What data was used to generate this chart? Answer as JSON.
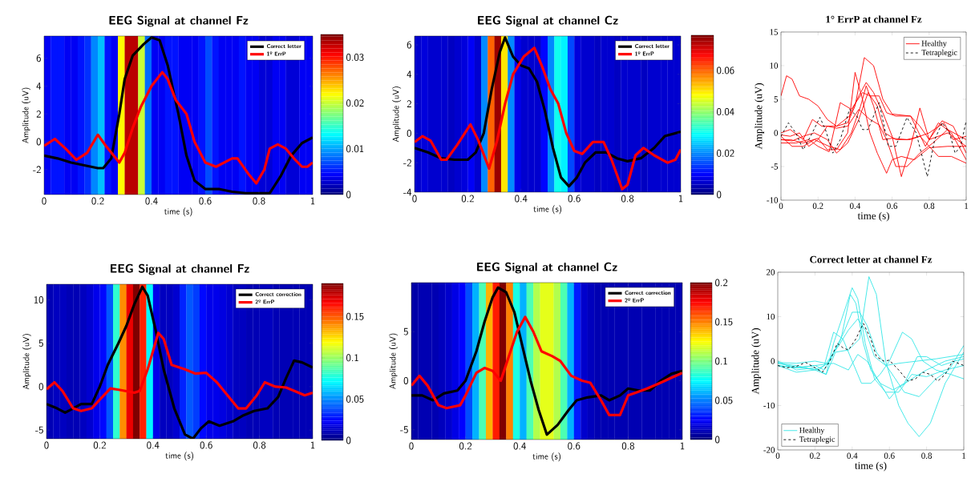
{
  "chart_data": [
    {
      "type": "heatmap",
      "title": "EEG Signal at channel Fz",
      "xlabel": "time (s)",
      "ylabel": "Amplitude (uV)",
      "x": [
        0.0125,
        0.0375,
        0.0625,
        0.0875,
        0.1125,
        0.1375,
        0.1625,
        0.1875,
        0.2125,
        0.2375,
        0.2625,
        0.2875,
        0.3125,
        0.3375,
        0.3625,
        0.3875,
        0.4125,
        0.4375,
        0.4625,
        0.4875,
        0.5125,
        0.5375,
        0.5625,
        0.5875,
        0.6125,
        0.6375,
        0.6625,
        0.6875,
        0.7125,
        0.7375,
        0.7625,
        0.7875,
        0.8125,
        0.8375,
        0.8625,
        0.8875,
        0.9125,
        0.9375,
        0.9625,
        0.9875
      ],
      "cells": [
        [
          0.004,
          0.005,
          0.005,
          0.004,
          0.004,
          0.005,
          0.006,
          0.009,
          0.011,
          0.005,
          0.004,
          0.022,
          0.033,
          0.033,
          0.02,
          0.008,
          0.004,
          0.004,
          0.005,
          0.005,
          0.004,
          0.004,
          0.004,
          0.005,
          0.007,
          0.005,
          0.004,
          0.004,
          0.004,
          0.005,
          0.004,
          0.004,
          0.003,
          0.003,
          0.004,
          0.004,
          0.003,
          0.003,
          0.004,
          0.004
        ]
      ],
      "clim": [
        0,
        0.035
      ],
      "cticks": [
        0,
        0.01,
        0.02,
        0.03
      ],
      "xlim": [
        0,
        1
      ],
      "xticks": [
        0,
        0.2,
        0.4,
        0.6,
        0.8,
        1
      ],
      "ylim": [
        -3.8,
        7.6
      ],
      "yticks": [
        -2,
        0,
        2,
        4,
        6
      ],
      "legend": "top right",
      "series": [
        {
          "type": "line",
          "name": "Correct letter",
          "color": "#000000",
          "x": [
            0,
            0.05,
            0.1,
            0.15,
            0.2,
            0.22,
            0.25,
            0.28,
            0.3,
            0.33,
            0.37,
            0.4,
            0.43,
            0.46,
            0.5,
            0.53,
            0.56,
            0.6,
            0.65,
            0.7,
            0.75,
            0.8,
            0.84,
            0.88,
            0.92,
            0.96,
            1
          ],
          "values": [
            -1,
            -1.2,
            -1.5,
            -1.7,
            -1.9,
            -1.9,
            -1.2,
            2,
            4.5,
            6.2,
            7,
            7.5,
            7.3,
            5.5,
            2,
            -1,
            -2.8,
            -3.4,
            -3.4,
            -3.6,
            -3.7,
            -3.7,
            -3.7,
            -2.5,
            -1,
            -0.1,
            0.3
          ]
        },
        {
          "type": "line",
          "name": "1º ErrP",
          "color": "#ff0000",
          "x": [
            0,
            0.04,
            0.08,
            0.12,
            0.16,
            0.2,
            0.23,
            0.28,
            0.3,
            0.33,
            0.36,
            0.4,
            0.44,
            0.46,
            0.49,
            0.53,
            0.56,
            0.6,
            0.64,
            0.7,
            0.72,
            0.76,
            0.79,
            0.82,
            0.84,
            0.87,
            0.9,
            0.93,
            0.96,
            0.98,
            1
          ],
          "values": [
            -0.3,
            0.2,
            -0.5,
            -1.3,
            -0.8,
            0.5,
            -0.3,
            -1.5,
            -0.8,
            1,
            2.5,
            4,
            5,
            4.5,
            3,
            2,
            0,
            -1.5,
            -1.8,
            -1.2,
            -1.2,
            -2.3,
            -3,
            -2,
            -0.5,
            -0.2,
            -0.5,
            -1.2,
            -1.8,
            -1.8,
            -1.5
          ]
        }
      ]
    },
    {
      "type": "heatmap",
      "title": "EEG Signal at channel Cz",
      "xlabel": "time (s)",
      "ylabel": "Amplitude (uV)",
      "x": [
        0.0125,
        0.0375,
        0.0625,
        0.0875,
        0.1125,
        0.1375,
        0.1625,
        0.1875,
        0.2125,
        0.2375,
        0.2625,
        0.2875,
        0.3125,
        0.3375,
        0.3625,
        0.3875,
        0.4125,
        0.4375,
        0.4625,
        0.4875,
        0.5125,
        0.5375,
        0.5625,
        0.5875,
        0.6125,
        0.6375,
        0.6625,
        0.6875,
        0.7125,
        0.7375,
        0.7625,
        0.7875,
        0.8125,
        0.8375,
        0.8625,
        0.8875,
        0.9125,
        0.9375,
        0.9625,
        0.9875
      ],
      "cells": [
        [
          0.006,
          0.007,
          0.006,
          0.006,
          0.006,
          0.005,
          0.006,
          0.007,
          0.009,
          0.006,
          0.02,
          0.06,
          0.075,
          0.05,
          0.02,
          0.008,
          0.006,
          0.006,
          0.006,
          0.01,
          0.02,
          0.03,
          0.028,
          0.015,
          0.007,
          0.006,
          0.006,
          0.005,
          0.006,
          0.006,
          0.005,
          0.006,
          0.006,
          0.006,
          0.005,
          0.006,
          0.006,
          0.006,
          0.006,
          0.006
        ]
      ],
      "clim": [
        0,
        0.077
      ],
      "cticks": [
        0,
        0.02,
        0.04,
        0.06
      ],
      "xlim": [
        0,
        1
      ],
      "xticks": [
        0,
        0.2,
        0.4,
        0.6,
        0.8,
        1
      ],
      "ylim": [
        -4,
        6.6
      ],
      "yticks": [
        -4,
        -2,
        0,
        2,
        4,
        6
      ],
      "legend": "top right",
      "series": [
        {
          "type": "line",
          "name": "Correct letter",
          "color": "#000000",
          "x": [
            0,
            0.05,
            0.1,
            0.15,
            0.2,
            0.23,
            0.26,
            0.29,
            0.32,
            0.34,
            0.37,
            0.4,
            0.43,
            0.46,
            0.49,
            0.52,
            0.55,
            0.58,
            0.61,
            0.64,
            0.68,
            0.72,
            0.76,
            0.8,
            0.85,
            0.9,
            0.94,
            1
          ],
          "values": [
            -1,
            -1.3,
            -1.7,
            -1.8,
            -1.8,
            -1.3,
            0,
            3,
            5.5,
            6.5,
            5.2,
            4.6,
            4.4,
            3.5,
            1.5,
            -1,
            -3,
            -3.6,
            -3,
            -2,
            -1.3,
            -1.3,
            -1.7,
            -1.9,
            -1.7,
            -1,
            -0.2,
            0.1
          ]
        },
        {
          "type": "line",
          "name": "1º ErrP",
          "color": "#ff0000",
          "x": [
            0,
            0.03,
            0.06,
            0.1,
            0.12,
            0.16,
            0.21,
            0.24,
            0.28,
            0.31,
            0.34,
            0.37,
            0.41,
            0.45,
            0.48,
            0.51,
            0.54,
            0.57,
            0.6,
            0.63,
            0.67,
            0.71,
            0.74,
            0.78,
            0.8,
            0.83,
            0.86,
            0.9,
            0.95,
            0.98,
            1
          ],
          "values": [
            -0.6,
            -0.2,
            -0.5,
            -1.8,
            -1.8,
            -0.8,
            0.6,
            -0.5,
            -2.4,
            -0.5,
            2,
            4,
            5.2,
            5.8,
            4.5,
            3,
            2,
            0,
            -1.2,
            -1.4,
            -0.6,
            -0.6,
            -1.8,
            -3.8,
            -3.5,
            -1.5,
            -1,
            -1.5,
            -2,
            -1.8,
            -1.1
          ]
        }
      ]
    },
    {
      "type": "line",
      "title": "1° ErrP at channel Fz",
      "xlabel": "time (s)",
      "ylabel": "Amplitude (uV)",
      "xlim": [
        0,
        1
      ],
      "xticks": [
        0,
        0.2,
        0.4,
        0.6,
        0.8,
        1
      ],
      "ylim": [
        -10,
        15
      ],
      "yticks": [
        -10,
        -5,
        0,
        5,
        10,
        15
      ],
      "legend": "top right",
      "series": [
        {
          "name": "Healthy",
          "color": "#ff0000",
          "x": [
            0,
            0.03,
            0.06,
            0.1,
            0.15,
            0.2,
            0.25,
            0.3,
            0.36,
            0.4,
            0.45,
            0.5,
            0.55,
            0.6,
            0.7,
            0.75,
            0.8,
            0.9,
            1
          ],
          "values": [
            5.5,
            8.5,
            8,
            5.5,
            5,
            4,
            2,
            1,
            1.5,
            4,
            11.2,
            10,
            5,
            2.8,
            2.5,
            1,
            -1,
            0,
            -2
          ]
        },
        {
          "color": "#ff0000",
          "x": [
            0,
            0.05,
            0.12,
            0.2,
            0.25,
            0.3,
            0.36,
            0.4,
            0.44,
            0.48,
            0.52,
            0.57,
            0.6,
            0.65,
            0.72,
            0.8,
            0.9,
            1
          ],
          "values": [
            -1,
            -1,
            -1.5,
            -0.8,
            -2.5,
            -2.5,
            0,
            9,
            5,
            0,
            -3,
            -6,
            -4,
            -3.5,
            -4,
            -2.2,
            -2,
            -2
          ]
        },
        {
          "color": "#ff0000",
          "x": [
            0,
            0.05,
            0.12,
            0.17,
            0.22,
            0.3,
            0.37,
            0.42,
            0.46,
            0.5,
            0.55,
            0.6,
            0.65,
            0.7,
            0.75,
            0.8,
            0.87,
            0.93,
            1
          ],
          "values": [
            0,
            0.5,
            -1,
            2,
            1,
            1,
            2.5,
            5.5,
            7.5,
            6,
            3,
            -0.5,
            -6.5,
            -2,
            3.7,
            -1,
            1.8,
            1,
            -3
          ]
        },
        {
          "color": "#ff0000",
          "x": [
            0,
            0.08,
            0.15,
            0.2,
            0.26,
            0.32,
            0.38,
            0.44,
            0.48,
            0.53,
            0.57,
            0.62,
            0.7,
            0.78,
            0.85,
            0.92,
            1
          ],
          "values": [
            -1.5,
            -1.5,
            -1,
            -2,
            -2.8,
            4.5,
            3.5,
            6,
            5.5,
            5.5,
            3,
            2.5,
            2.5,
            -2,
            1.5,
            0,
            -4
          ]
        },
        {
          "color": "#ff0000",
          "x": [
            0,
            0.06,
            0.12,
            0.18,
            0.26,
            0.32,
            0.38,
            0.43,
            0.46,
            0.5,
            0.55,
            0.6,
            0.68,
            0.75,
            0.85,
            0.92,
            1
          ],
          "values": [
            -0.5,
            -2,
            -2,
            -1,
            -2,
            -2.5,
            0,
            4,
            7,
            4,
            -1,
            -0.8,
            -1,
            -0.5,
            -3.5,
            -3.5,
            -4.5
          ]
        },
        {
          "color": "#ff0000",
          "x": [
            0,
            0.06,
            0.12,
            0.18,
            0.25,
            0.3,
            0.36,
            0.42,
            0.47,
            0.52,
            0.56,
            0.62,
            0.7,
            0.8,
            0.88,
            0.93,
            1
          ],
          "values": [
            -1,
            -1.2,
            -0.5,
            0,
            -1,
            -3,
            -1.5,
            2,
            6,
            4,
            0,
            -1,
            -1,
            0,
            1.5,
            -1,
            -0.5
          ]
        },
        {
          "color": "#ff0000",
          "x": [
            0,
            0.05,
            0.1,
            0.15,
            0.2,
            0.25,
            0.3,
            0.36,
            0.42,
            0.48,
            0.53,
            0.57,
            0.62,
            0.68,
            0.75,
            0.82,
            0.9,
            1
          ],
          "values": [
            -0.3,
            -0.5,
            0,
            -2,
            -1,
            1,
            0.7,
            1,
            3.5,
            2,
            1.2,
            -1,
            -5,
            -5,
            -3,
            -1.5,
            0.5,
            -1
          ]
        },
        {
          "name": "Tetraplegic",
          "color": "#000000",
          "line_style": "dashed",
          "x": [
            0,
            0.04,
            0.08,
            0.12,
            0.16,
            0.21,
            0.24,
            0.28,
            0.32,
            0.37,
            0.41,
            0.44,
            0.47,
            0.53,
            0.58,
            0.62,
            0.68,
            0.73,
            0.79,
            0.83,
            0.87,
            0.91,
            0.94,
            0.97,
            1
          ],
          "values": [
            -0.5,
            1.5,
            0,
            -2.5,
            -0.5,
            2.3,
            0.5,
            -3,
            -1,
            3.5,
            2.5,
            0.5,
            0.5,
            4.5,
            -2,
            -2,
            2.3,
            0,
            -6.5,
            -1,
            1.5,
            0,
            -3,
            -2,
            1.8
          ]
        }
      ]
    },
    {
      "type": "heatmap",
      "title": "EEG Signal at channel Fz",
      "xlabel": "time (s)",
      "ylabel": "Amplitude (uV)",
      "x": [
        0.0125,
        0.0375,
        0.0625,
        0.0875,
        0.1125,
        0.1375,
        0.1625,
        0.1875,
        0.2125,
        0.2375,
        0.2625,
        0.2875,
        0.3125,
        0.3375,
        0.3625,
        0.3875,
        0.4125,
        0.4375,
        0.4625,
        0.4875,
        0.5125,
        0.5375,
        0.5625,
        0.5875,
        0.6125,
        0.6375,
        0.6625,
        0.6875,
        0.7125,
        0.7375,
        0.7625,
        0.7875,
        0.8125,
        0.8375,
        0.8625,
        0.8875,
        0.9125,
        0.9375,
        0.9625,
        0.9875
      ],
      "cells": [
        [
          0.01,
          0.012,
          0.012,
          0.01,
          0.01,
          0.012,
          0.015,
          0.02,
          0.025,
          0.04,
          0.08,
          0.14,
          0.17,
          0.19,
          0.16,
          0.07,
          0.02,
          0.012,
          0.012,
          0.015,
          0.03,
          0.04,
          0.035,
          0.025,
          0.02,
          0.02,
          0.018,
          0.015,
          0.012,
          0.012,
          0.01,
          0.01,
          0.012,
          0.012,
          0.01,
          0.01,
          0.01,
          0.01,
          0.01,
          0.01
        ]
      ],
      "clim": [
        0,
        0.19
      ],
      "cticks": [
        0,
        0.05,
        0.1,
        0.15
      ],
      "xlim": [
        0,
        1
      ],
      "xticks": [
        0,
        0.2,
        0.4,
        0.6,
        0.8,
        1
      ],
      "ylim": [
        -6,
        11.8
      ],
      "yticks": [
        -5,
        0,
        5,
        10
      ],
      "legend": "top right",
      "series": [
        {
          "type": "line",
          "name": "Correct correction",
          "color": "#000000",
          "x": [
            0,
            0.04,
            0.07,
            0.1,
            0.13,
            0.17,
            0.2,
            0.23,
            0.27,
            0.3,
            0.33,
            0.36,
            0.38,
            0.41,
            0.44,
            0.48,
            0.52,
            0.55,
            0.58,
            0.61,
            0.65,
            0.7,
            0.74,
            0.78,
            0.83,
            0.87,
            0.9,
            0.93,
            0.96,
            1
          ],
          "values": [
            -2,
            -2.5,
            -3,
            -2.5,
            -2,
            -2,
            0,
            2.5,
            5,
            7,
            9.5,
            11.5,
            10.5,
            6.5,
            2,
            -2.5,
            -5.5,
            -6,
            -4.8,
            -4,
            -4.5,
            -4,
            -3.3,
            -2.8,
            -2.5,
            -1.2,
            1,
            3,
            2.8,
            2.2
          ]
        },
        {
          "type": "line",
          "name": "2º ErrP",
          "color": "#ff0000",
          "x": [
            0,
            0.03,
            0.06,
            0.1,
            0.13,
            0.17,
            0.2,
            0.24,
            0.28,
            0.33,
            0.35,
            0.38,
            0.42,
            0.44,
            0.47,
            0.52,
            0.56,
            0.6,
            0.64,
            0.68,
            0.72,
            0.75,
            0.79,
            0.82,
            0.86,
            0.9,
            0.94,
            0.97,
            1
          ],
          "values": [
            -0.3,
            0.5,
            -0.5,
            -2.5,
            -2.8,
            -2.5,
            -1.5,
            -0.2,
            -0.4,
            -0.7,
            -0.5,
            2,
            6.2,
            5.5,
            2.5,
            2,
            1.5,
            1.6,
            0.5,
            -1,
            -2.5,
            -2.5,
            -1,
            0.5,
            0,
            -0.1,
            -0.6,
            -1,
            -0.7
          ]
        }
      ]
    },
    {
      "type": "heatmap",
      "title": "EEG Signal at channel Cz",
      "xlabel": "time (s)",
      "ylabel": "Amplitude (uV)",
      "x": [
        0.0125,
        0.0375,
        0.0625,
        0.0875,
        0.1125,
        0.1375,
        0.1625,
        0.1875,
        0.2125,
        0.2375,
        0.2625,
        0.2875,
        0.3125,
        0.3375,
        0.3625,
        0.3875,
        0.4125,
        0.4375,
        0.4625,
        0.4875,
        0.5125,
        0.5375,
        0.5625,
        0.5875,
        0.6125,
        0.6375,
        0.6625,
        0.6875,
        0.7125,
        0.7375,
        0.7625,
        0.7875,
        0.8125,
        0.8375,
        0.8625,
        0.8875,
        0.9125,
        0.9375,
        0.9625,
        0.9875
      ],
      "cells": [
        [
          0.008,
          0.01,
          0.01,
          0.01,
          0.012,
          0.015,
          0.02,
          0.025,
          0.04,
          0.06,
          0.09,
          0.14,
          0.17,
          0.2,
          0.15,
          0.08,
          0.06,
          0.09,
          0.11,
          0.12,
          0.12,
          0.11,
          0.09,
          0.06,
          0.03,
          0.015,
          0.012,
          0.01,
          0.01,
          0.01,
          0.01,
          0.01,
          0.01,
          0.01,
          0.01,
          0.01,
          0.01,
          0.01,
          0.01,
          0.01
        ]
      ],
      "clim": [
        0,
        0.2
      ],
      "cticks": [
        0,
        0.05,
        0.1,
        0.15,
        0.2
      ],
      "xlim": [
        0,
        1
      ],
      "xticks": [
        0,
        0.2,
        0.4,
        0.6,
        0.8,
        1
      ],
      "ylim": [
        -6,
        10
      ],
      "yticks": [
        -5,
        0,
        5
      ],
      "legend": "top right",
      "series": [
        {
          "type": "line",
          "name": "Correct correction",
          "color": "#000000",
          "x": [
            0,
            0.04,
            0.08,
            0.12,
            0.17,
            0.2,
            0.24,
            0.27,
            0.3,
            0.32,
            0.35,
            0.38,
            0.41,
            0.44,
            0.47,
            0.5,
            0.54,
            0.58,
            0.61,
            0.65,
            0.7,
            0.73,
            0.77,
            0.8,
            0.84,
            0.88,
            0.92,
            0.96,
            1
          ],
          "values": [
            -1.5,
            -1.5,
            -2,
            -1.3,
            -1,
            0,
            3,
            6,
            8.5,
            9.5,
            9,
            7,
            3.5,
            0,
            -3,
            -5.5,
            -4.5,
            -3,
            -2,
            -1.7,
            -1.5,
            -2,
            -1.5,
            -0.8,
            -1,
            -1,
            0,
            0.7,
            1
          ]
        },
        {
          "type": "line",
          "name": "2º ErrP",
          "color": "#ff0000",
          "x": [
            0,
            0.03,
            0.06,
            0.1,
            0.13,
            0.18,
            0.2,
            0.24,
            0.27,
            0.3,
            0.33,
            0.36,
            0.39,
            0.42,
            0.45,
            0.48,
            0.52,
            0.55,
            0.59,
            0.63,
            0.66,
            0.7,
            0.73,
            0.77,
            0.8,
            0.83,
            0.87,
            0.92,
            0.96,
            1
          ],
          "values": [
            -0.5,
            0.5,
            -0.5,
            -2.5,
            -2.8,
            -2.5,
            -1.5,
            0.8,
            1.3,
            1,
            0,
            2.5,
            5,
            6.5,
            5,
            3,
            2.5,
            2,
            0.5,
            0,
            -0.2,
            -2,
            -3.5,
            -3.5,
            -1.5,
            -1.2,
            -0.8,
            -0.2,
            0.3,
            0.8
          ]
        }
      ]
    },
    {
      "type": "line",
      "title": "Correct letter at channel Fz",
      "xlabel": "time (s)",
      "ylabel": "Amplitude (uV)",
      "xlim": [
        0,
        1
      ],
      "xticks": [
        0,
        0.2,
        0.4,
        0.6,
        0.8,
        1
      ],
      "ylim": [
        -20,
        20
      ],
      "yticks": [
        -20,
        -10,
        0,
        10,
        20
      ],
      "legend": "bottom left",
      "series": [
        {
          "name": "Healthy",
          "color": "#33e6e6",
          "x": [
            0,
            0.1,
            0.2,
            0.25,
            0.3,
            0.35,
            0.4,
            0.44,
            0.48,
            0.53,
            0.6,
            0.68,
            0.76,
            0.85,
            0.92,
            1
          ],
          "values": [
            -1,
            -1.5,
            -1,
            -2,
            2,
            6,
            11,
            11,
            8,
            2,
            -2,
            -7,
            -8,
            -4,
            -2,
            3.5
          ]
        },
        {
          "color": "#33e6e6",
          "x": [
            0,
            0.12,
            0.22,
            0.28,
            0.34,
            0.39,
            0.42,
            0.46,
            0.5,
            0.55,
            0.6,
            0.65,
            0.72,
            0.8,
            0.9,
            1
          ],
          "values": [
            -0.5,
            -1.5,
            -2,
            0,
            5,
            15,
            13,
            4,
            -2,
            -5,
            -8.5,
            -6,
            -4,
            -2,
            0,
            1
          ]
        },
        {
          "color": "#33e6e6",
          "x": [
            0,
            0.1,
            0.2,
            0.26,
            0.3,
            0.34,
            0.4,
            0.43,
            0.47,
            0.52,
            0.58,
            0.65,
            0.72,
            0.8,
            0.9,
            1
          ],
          "values": [
            0,
            -2,
            -1.5,
            -3,
            4,
            9,
            16.5,
            14,
            4,
            -4,
            -7,
            -7,
            -3,
            -3.5,
            -2,
            -1
          ]
        },
        {
          "color": "#33e6e6",
          "x": [
            0,
            0.1,
            0.2,
            0.26,
            0.31,
            0.38,
            0.44,
            0.49,
            0.53,
            0.58,
            0.65,
            0.7,
            0.76,
            0.82,
            0.9,
            1
          ],
          "values": [
            -1,
            -2.5,
            -2,
            -3,
            2,
            2.5,
            5,
            19,
            15,
            0,
            -10,
            -14,
            -17,
            -14,
            -5,
            2
          ]
        },
        {
          "color": "#33e6e6",
          "x": [
            0,
            0.1,
            0.2,
            0.25,
            0.3,
            0.35,
            0.4,
            0.45,
            0.5,
            0.55,
            0.6,
            0.67,
            0.72,
            0.78,
            0.85,
            0.93,
            1
          ],
          "values": [
            -0.5,
            -1,
            -2,
            -1,
            6.5,
            5,
            0,
            -5,
            -5,
            -3,
            0,
            6.5,
            5,
            0,
            -2,
            -3,
            -4
          ]
        },
        {
          "color": "#33e6e6",
          "x": [
            0,
            0.1,
            0.2,
            0.26,
            0.32,
            0.38,
            0.43,
            0.47,
            0.52,
            0.58,
            0.65,
            0.75,
            0.85,
            1
          ],
          "values": [
            -0.3,
            -0.5,
            0,
            -0.5,
            3,
            7,
            9.5,
            7,
            1,
            -1,
            -0.5,
            0,
            0.5,
            1.5
          ]
        },
        {
          "color": "#33e6e6",
          "x": [
            0,
            0.1,
            0.2,
            0.3,
            0.38,
            0.43,
            0.48,
            0.55,
            0.62,
            0.68,
            0.75,
            0.8,
            0.88,
            0.95,
            1
          ],
          "values": [
            -1,
            -1.5,
            -1,
            -0.5,
            -2,
            1.5,
            0,
            -5,
            -6.5,
            -5,
            1,
            1,
            -1,
            0,
            0.5
          ]
        },
        {
          "name": "Tetraplegic",
          "color": "#000000",
          "line_style": "dashed",
          "x": [
            0,
            0.05,
            0.1,
            0.15,
            0.2,
            0.24,
            0.28,
            0.32,
            0.35,
            0.38,
            0.42,
            0.46,
            0.5,
            0.53,
            0.57,
            0.6,
            0.65,
            0.7,
            0.74,
            0.78,
            0.82,
            0.86,
            0.9,
            0.94,
            0.97,
            1
          ],
          "values": [
            -1,
            -1.5,
            -1.2,
            -0.3,
            -1.5,
            -2.5,
            0,
            4,
            3,
            2.5,
            5,
            8.5,
            5,
            1,
            0,
            0.2,
            -2,
            -4.5,
            -4,
            -2.5,
            -3,
            -4.5,
            -3,
            0,
            -0.5,
            -1
          ]
        }
      ]
    }
  ]
}
